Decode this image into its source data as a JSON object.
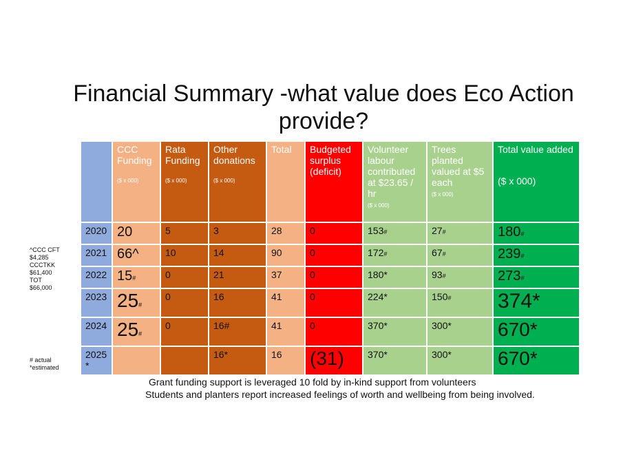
{
  "header": {
    "title": "Financial Summary -what value does Eco Action provide?"
  },
  "table": {
    "columns": [
      {
        "label": "CCC Funding",
        "note": "($ x 000)"
      },
      {
        "label": "Rata Funding",
        "note": "($ x 000)"
      },
      {
        "label": "Other donations",
        "note": "($ x 000)"
      },
      {
        "label": "Total"
      },
      {
        "label": "Budgeted surplus (deficit)"
      },
      {
        "label": "Volunteer labour contributed at $23.65 / hr",
        "note": "($ x 000)"
      },
      {
        "label": "Trees planted valued at $5 each",
        "note": "($ x 000)"
      },
      {
        "label": "Total value added",
        "note": "($ x 000)"
      }
    ],
    "rows": [
      {
        "label": "2020",
        "cells": [
          {
            "text": "20"
          },
          {
            "text": "5"
          },
          {
            "text": "3"
          },
          {
            "text": "28"
          },
          {
            "text": "0"
          },
          {
            "text": "153",
            "mark": "#"
          },
          {
            "text": "27",
            "mark": "#"
          },
          {
            "text": "180",
            "mark": "#"
          }
        ]
      },
      {
        "label": "2021",
        "cells": [
          {
            "text": "66^"
          },
          {
            "text": "10"
          },
          {
            "text": "14"
          },
          {
            "text": "90"
          },
          {
            "text": "0"
          },
          {
            "text": "172",
            "mark": "#"
          },
          {
            "text": "67",
            "mark": "#"
          },
          {
            "text": "239",
            "mark": "#"
          }
        ]
      },
      {
        "label": "2022",
        "cells": [
          {
            "text": "15",
            "mark": "#"
          },
          {
            "text": "0"
          },
          {
            "text": "21"
          },
          {
            "text": "37"
          },
          {
            "text": "0"
          },
          {
            "text": "180*"
          },
          {
            "text": "93",
            "mark": "#"
          },
          {
            "text": "273",
            "mark": "#"
          }
        ]
      },
      {
        "label": "2023",
        "cells": [
          {
            "text": "25",
            "mark": "#"
          },
          {
            "text": "0"
          },
          {
            "text": "16"
          },
          {
            "text": "41"
          },
          {
            "text": "0"
          },
          {
            "text": "224*"
          },
          {
            "text": "150",
            "mark": "#"
          },
          {
            "text": "374*"
          }
        ]
      },
      {
        "label": "2024",
        "cells": [
          {
            "text": "25",
            "mark": "#"
          },
          {
            "text": "0"
          },
          {
            "text": "16#"
          },
          {
            "text": "41"
          },
          {
            "text": "0"
          },
          {
            "text": "370*"
          },
          {
            "text": "300*"
          },
          {
            "text": "670*"
          }
        ]
      },
      {
        "label": "2025 *",
        "cells": [
          null,
          null,
          {
            "text": "16*"
          },
          {
            "text": "16"
          },
          {
            "text": "(31)"
          },
          {
            "text": "370*"
          },
          {
            "text": "300*"
          },
          {
            "text": "670*"
          }
        ]
      }
    ]
  },
  "notes": {
    "left_top": [
      "^CCC CFT",
      "$4,285",
      "CCCTKK",
      "$61,400",
      "TOT",
      "$66,000"
    ],
    "left_bottom": [
      "# actual",
      "*estimated"
    ]
  },
  "footer": [
    "Grant funding support is  leveraged 10 fold by in-kind support from volunteers",
    "Students and planters report increased feelings of worth and wellbeing from being involved."
  ]
}
